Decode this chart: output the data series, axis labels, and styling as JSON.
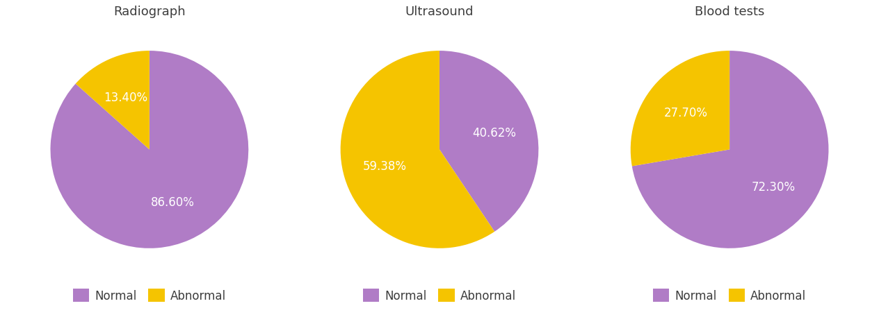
{
  "charts": [
    {
      "title": "Radiograph",
      "values": [
        86.6,
        13.4
      ],
      "labels": [
        "Normal",
        "Abnormal"
      ],
      "colors": [
        "#b07cc6",
        "#f5c400"
      ],
      "text_labels": [
        "86.60%",
        "13.40%"
      ],
      "startangle": 90
    },
    {
      "title": "Ultrasound",
      "values": [
        40.62,
        59.38
      ],
      "labels": [
        "Normal",
        "Abnormal"
      ],
      "colors": [
        "#b07cc6",
        "#f5c400"
      ],
      "text_labels": [
        "40.62%",
        "59.38%"
      ],
      "startangle": 90
    },
    {
      "title": "Blood tests",
      "values": [
        72.3,
        27.7
      ],
      "labels": [
        "Normal",
        "Abnormal"
      ],
      "colors": [
        "#b07cc6",
        "#f5c400"
      ],
      "text_labels": [
        "72.30%",
        "27.70%"
      ],
      "startangle": 90
    }
  ],
  "purple_color": "#b07cc6",
  "gold_color": "#f5c400",
  "text_color_white": "#ffffff",
  "background_color": "#ffffff",
  "title_fontsize": 13,
  "label_fontsize": 12,
  "legend_fontsize": 12
}
